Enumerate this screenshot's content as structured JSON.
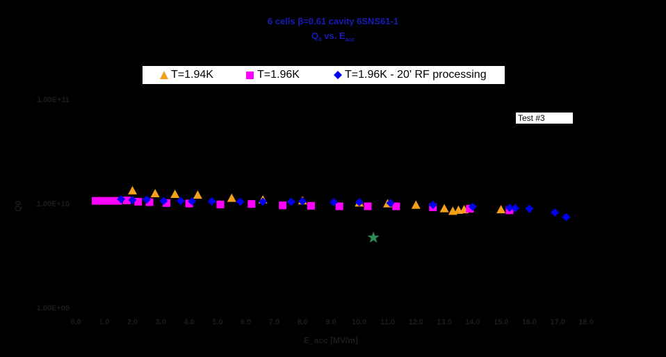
{
  "title_line1": "6 cells β=0.61 cavity 6SNS61-1",
  "title_line2_main": "Q",
  "title_line2_sub1": "0",
  "title_line2_mid": " vs. E",
  "title_line2_sub2": "acc",
  "test_label": "Test #3",
  "colors": {
    "background": "#000000",
    "title": "#1a1ab8",
    "s194": "#f5a01a",
    "s196": "#ff00ff",
    "s196rf": "#0000ee",
    "star": "#2e8b57"
  },
  "chart_data": {
    "type": "scatter",
    "title": "6 cells β=0.61 cavity 6SNS61-1 Q0 vs. Eacc",
    "xlabel": "E_acc [MV/m]",
    "ylabel": "Q0",
    "x_ticks": [
      "0.0",
      "1.0",
      "2.0",
      "3.0",
      "4.0",
      "5.0",
      "6.0",
      "7.0",
      "8.0",
      "9.0",
      "10.0",
      "11.0",
      "12.0",
      "13.0",
      "14.0",
      "15.0",
      "16.0",
      "17.0",
      "18.0"
    ],
    "y_ticks": [
      "1.00E+11",
      "1.00E+10",
      "1.00E+09"
    ],
    "xlim": [
      0,
      18
    ],
    "ylim_log10": [
      9,
      11
    ],
    "y_scale": "log",
    "legend_position": "top",
    "series": [
      {
        "name": "T=1.94K",
        "marker": "triangle",
        "color": "#f5a01a",
        "points": [
          [
            2.0,
            13200000000.0
          ],
          [
            2.8,
            12400000000.0
          ],
          [
            3.5,
            12200000000.0
          ],
          [
            4.3,
            12000000000.0
          ],
          [
            5.5,
            11200000000.0
          ],
          [
            6.6,
            10800000000.0
          ],
          [
            8.0,
            10600000000.0
          ],
          [
            10.0,
            10100000000.0
          ],
          [
            11.0,
            9900000000.0
          ],
          [
            12.0,
            9600000000.0
          ],
          [
            13.0,
            8900000000.0
          ],
          [
            13.3,
            8400000000.0
          ],
          [
            13.5,
            8600000000.0
          ],
          [
            13.7,
            8700000000.0
          ],
          [
            15.0,
            8700000000.0
          ]
        ]
      },
      {
        "name": "T=1.96K",
        "marker": "square",
        "color": "#ff00ff",
        "points": [
          [
            0.7,
            10600000000.0
          ],
          [
            0.9,
            10600000000.0
          ],
          [
            1.1,
            10600000000.0
          ],
          [
            1.3,
            10600000000.0
          ],
          [
            1.5,
            10600000000.0
          ],
          [
            1.8,
            10700000000.0
          ],
          [
            2.2,
            10400000000.0
          ],
          [
            2.6,
            10300000000.0
          ],
          [
            3.2,
            10100000000.0
          ],
          [
            4.0,
            10000000000.0
          ],
          [
            5.1,
            9800000000.0
          ],
          [
            6.2,
            9900000000.0
          ],
          [
            7.3,
            9600000000.0
          ],
          [
            8.3,
            9500000000.0
          ],
          [
            9.3,
            9400000000.0
          ],
          [
            10.3,
            9400000000.0
          ],
          [
            11.3,
            9400000000.0
          ],
          [
            12.6,
            9200000000.0
          ],
          [
            13.9,
            8900000000.0
          ],
          [
            15.3,
            8600000000.0
          ]
        ]
      },
      {
        "name": "T=1.96K - 20' RF processing",
        "marker": "diamond",
        "color": "#0000ee",
        "points": [
          [
            1.6,
            11000000000.0
          ],
          [
            2.0,
            10800000000.0
          ],
          [
            2.5,
            10900000000.0
          ],
          [
            3.1,
            10600000000.0
          ],
          [
            3.7,
            10600000000.0
          ],
          [
            4.1,
            10500000000.0
          ],
          [
            4.8,
            10500000000.0
          ],
          [
            5.8,
            10400000000.0
          ],
          [
            6.6,
            10400000000.0
          ],
          [
            7.6,
            10400000000.0
          ],
          [
            8.0,
            10500000000.0
          ],
          [
            9.1,
            10300000000.0
          ],
          [
            10.0,
            10300000000.0
          ],
          [
            11.1,
            10100000000.0
          ],
          [
            12.6,
            9700000000.0
          ],
          [
            14.0,
            9300000000.0
          ],
          [
            15.3,
            9100000000.0
          ],
          [
            15.5,
            9000000000.0
          ],
          [
            16.0,
            8900000000.0
          ],
          [
            16.9,
            8200000000.0
          ],
          [
            17.3,
            7400000000.0
          ]
        ]
      },
      {
        "name": "",
        "marker": "star",
        "color": "#2e8b57",
        "points": [
          [
            10.5,
            4700000000.0
          ]
        ]
      }
    ]
  }
}
